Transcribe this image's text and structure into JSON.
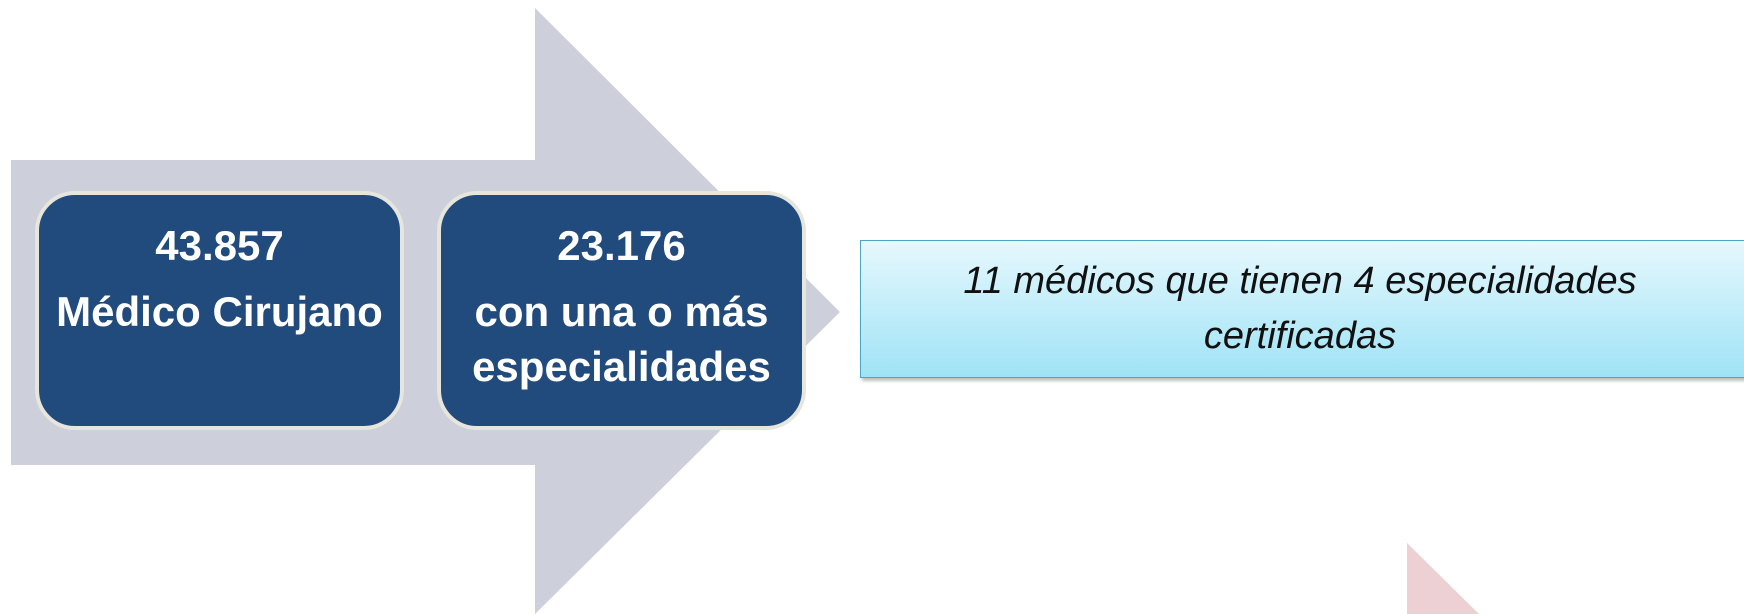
{
  "boxes": [
    {
      "number": "43.857",
      "label": "Médico Cirujano"
    },
    {
      "number": "23.176",
      "label": "con una o más especialidades"
    }
  ],
  "note": "11 médicos que tienen 4 especialidades certificadas"
}
